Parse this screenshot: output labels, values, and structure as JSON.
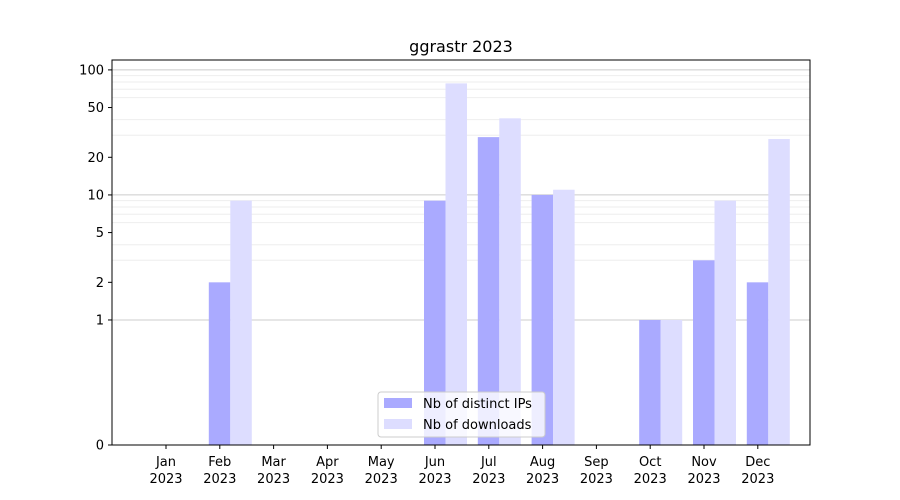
{
  "chart_data": {
    "type": "bar",
    "title": "ggrastr 2023",
    "categories": [
      "Jan\n2023",
      "Feb\n2023",
      "Mar\n2023",
      "Apr\n2023",
      "May\n2023",
      "Jun\n2023",
      "Jul\n2023",
      "Aug\n2023",
      "Sep\n2023",
      "Oct\n2023",
      "Nov\n2023",
      "Dec\n2023"
    ],
    "series": [
      {
        "name": "Nb of distinct IPs",
        "color": "#aaaaff",
        "values": [
          0,
          2,
          0,
          0,
          0,
          9,
          29,
          10,
          0,
          1,
          3,
          2
        ]
      },
      {
        "name": "Nb of downloads",
        "color": "#ddddff",
        "values": [
          0,
          9,
          0,
          0,
          0,
          78,
          41,
          11,
          0,
          1,
          9,
          28
        ]
      }
    ],
    "yscale": "symlog",
    "yticks": [
      0,
      1,
      2,
      5,
      10,
      20,
      50,
      100
    ],
    "ylim": [
      0,
      120
    ],
    "grid": "y-major-and-minor",
    "legend": "lower-center",
    "xlabel": "",
    "ylabel": ""
  }
}
